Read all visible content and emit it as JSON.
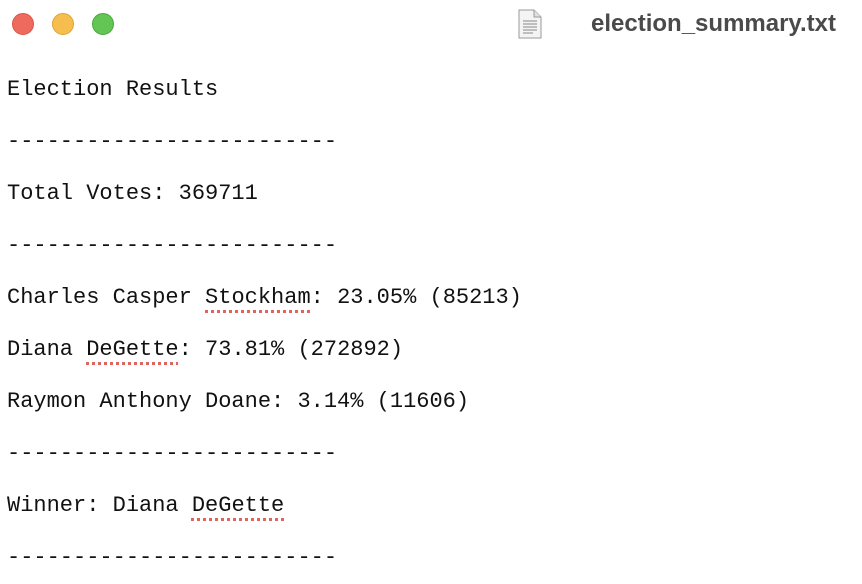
{
  "window": {
    "title": "election_summary.txt"
  },
  "document": {
    "lines": [
      [
        "Election Results"
      ],
      [
        "-------------------------"
      ],
      [
        "Total Votes: 369711"
      ],
      [
        "-------------------------"
      ],
      [
        "Charles Casper ",
        "Stockham",
        ": 23.05% (85213)"
      ],
      [
        "Diana ",
        "DeGette",
        ": 73.81% (272892)"
      ],
      [
        "Raymon Anthony Doane: 3.14% (11606)"
      ],
      [
        "-------------------------"
      ],
      [
        "Winner: Diana ",
        "DeGette"
      ],
      [
        "-------------------------"
      ]
    ]
  }
}
